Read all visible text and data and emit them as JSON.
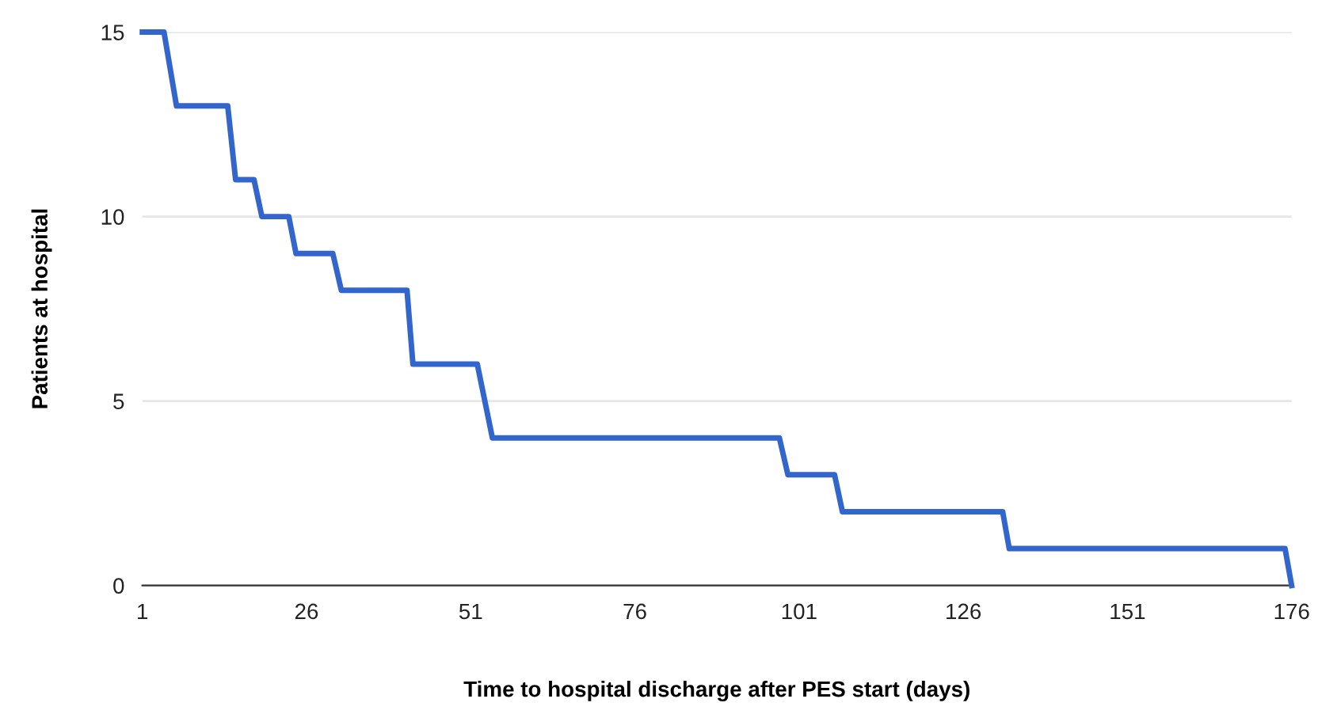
{
  "chart_data": {
    "type": "line",
    "xlabel": "Time to hospital discharge after PES start (days)",
    "ylabel": "Patients at hospital",
    "series": [
      {
        "color": "#3366cc",
        "x": [
          1,
          4.3,
          6.2,
          14,
          15.2,
          18,
          19.2,
          23.3,
          24.4,
          30,
          31.3,
          41.3,
          42.2,
          52,
          54.3,
          98,
          99.3,
          106.4,
          107.6,
          132,
          133,
          175,
          176
        ],
        "values": [
          15,
          15,
          13,
          13,
          11,
          11,
          10,
          10,
          9,
          9,
          8,
          8,
          6,
          6,
          4,
          4,
          3,
          3,
          2,
          2,
          1,
          1,
          0
        ]
      }
    ],
    "xlim": [
      1,
      176
    ],
    "xticks": [
      1,
      26,
      51,
      76,
      101,
      126,
      151,
      176
    ],
    "ylim": [
      0,
      15
    ],
    "yticks": [
      0,
      5,
      10,
      15
    ],
    "grid": "y",
    "legend": false,
    "marker": "none",
    "line_style": "solid"
  }
}
